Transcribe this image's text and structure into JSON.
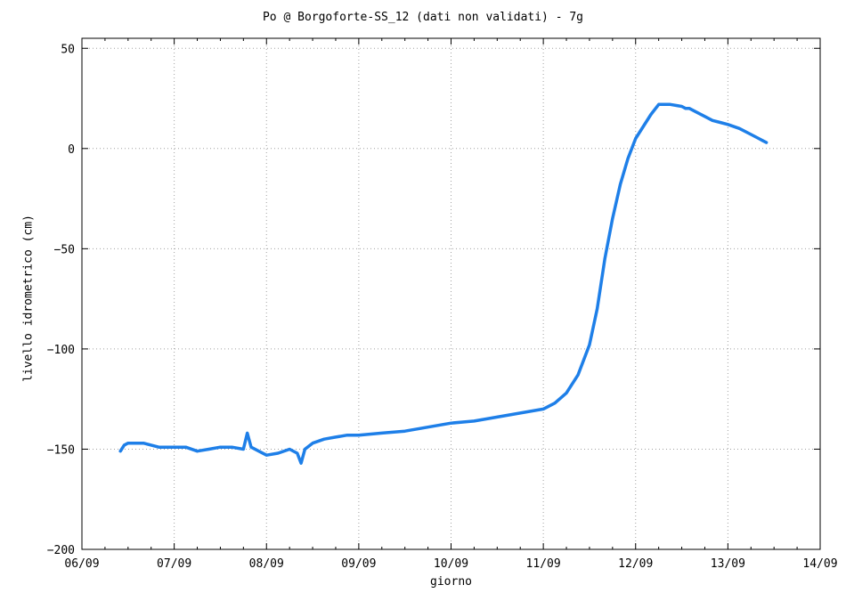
{
  "chart_data": {
    "type": "line",
    "title": "Po @ Borgoforte-SS_12 (dati non validati) - 7g",
    "xlabel": "giorno",
    "ylabel": "livello idrometrico (cm)",
    "x_tick_labels": [
      "06/09",
      "07/09",
      "08/09",
      "09/09",
      "10/09",
      "11/09",
      "12/09",
      "13/09",
      "14/09"
    ],
    "x_range": [
      "06/09",
      "14/09"
    ],
    "y_ticks": [
      -200,
      -150,
      -100,
      -50,
      0,
      50
    ],
    "y_tick_labels": [
      "−200",
      "−150",
      "−100",
      "−50",
      "0",
      "50"
    ],
    "ylim": [
      -200,
      55
    ],
    "grid": true,
    "legend": "none",
    "line_color": "#1e7fe8",
    "series": [
      {
        "x": [
          "06/09 10:00",
          "06/09 11:00",
          "06/09 12:00",
          "06/09 14:00",
          "06/09 16:00",
          "06/09 18:00",
          "06/09 20:00",
          "06/09 22:00",
          "07/09 00:00",
          "07/09 03:00",
          "07/09 06:00",
          "07/09 09:00",
          "07/09 12:00",
          "07/09 15:00",
          "07/09 18:00",
          "07/09 19:00",
          "07/09 20:00",
          "07/09 22:00",
          "08/09 00:00",
          "08/09 03:00",
          "08/09 06:00",
          "08/09 08:00",
          "08/09 09:00",
          "08/09 10:00",
          "08/09 12:00",
          "08/09 15:00",
          "08/09 18:00",
          "08/09 21:00",
          "09/09 00:00",
          "09/09 06:00",
          "09/09 12:00",
          "09/09 18:00",
          "10/09 00:00",
          "10/09 06:00",
          "10/09 12:00",
          "10/09 18:00",
          "11/09 00:00",
          "11/09 03:00",
          "11/09 06:00",
          "11/09 09:00",
          "11/09 12:00",
          "11/09 14:00",
          "11/09 16:00",
          "11/09 18:00",
          "11/09 20:00",
          "11/09 22:00",
          "12/09 00:00",
          "12/09 02:00",
          "12/09 04:00",
          "12/09 06:00",
          "12/09 09:00",
          "12/09 12:00",
          "12/09 13:00",
          "12/09 14:00",
          "12/09 16:00",
          "12/09 18:00",
          "12/09 20:00",
          "12/09 22:00",
          "13/09 00:00",
          "13/09 03:00",
          "13/09 06:00",
          "13/09 08:00",
          "13/09 09:00",
          "13/09 10:00"
        ],
        "y": [
          -151,
          -148,
          -147,
          -147,
          -147,
          -148,
          -149,
          -149,
          -149,
          -149,
          -151,
          -150,
          -149,
          -149,
          -150,
          -142,
          -149,
          -151,
          -153,
          -152,
          -150,
          -152,
          -157,
          -150,
          -147,
          -145,
          -144,
          -143,
          -143,
          -142,
          -141,
          -139,
          -137,
          -136,
          -134,
          -132,
          -130,
          -127,
          -122,
          -113,
          -98,
          -80,
          -55,
          -35,
          -18,
          -5,
          5,
          11,
          17,
          22,
          22,
          21,
          20,
          20,
          18,
          16,
          14,
          13,
          12,
          10,
          7,
          5,
          4,
          3
        ]
      }
    ]
  }
}
